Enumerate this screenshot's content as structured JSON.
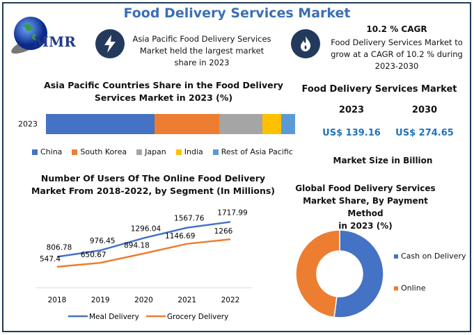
{
  "header": {
    "title": "Food Delivery Services Market",
    "logo_text": "MMR"
  },
  "info1": {
    "icon": "lightning-icon",
    "text_lines": [
      "Asia Pacific Food Delivery Services",
      "Market held the largest market",
      "share in 2023"
    ]
  },
  "info2": {
    "icon": "flame-icon",
    "heading": "10.2 % CAGR",
    "text_lines": [
      "Food Delivery Services Market to",
      "grow at a CAGR of 10.2 % during",
      "2023-2030"
    ]
  },
  "market_size": {
    "title": "Food Delivery Services Market",
    "years": [
      "2023",
      "2030"
    ],
    "values": [
      "US$ 139.16",
      "US$ 274.65"
    ],
    "unit_label": "Market Size in Billion"
  },
  "colors": {
    "blue": "#4472c4",
    "orange": "#ed7d31",
    "gray": "#a5a5a5",
    "yellow": "#ffc000",
    "lightblue": "#5b9bd5",
    "navy": "#233a5c"
  },
  "chart_data": [
    {
      "type": "bar",
      "orientation": "horizontal-stacked",
      "title_lines": [
        "Asia Pacific Countries Share in the Food Delivery",
        "Services  Market in 2023 (%)"
      ],
      "categories": [
        "2023"
      ],
      "series": [
        {
          "name": "China",
          "values": [
            43.6
          ]
        },
        {
          "name": "South Korea",
          "values": [
            26
          ]
        },
        {
          "name": "Japan",
          "values": [
            17.3
          ]
        },
        {
          "name": "India",
          "values": [
            7.5
          ]
        },
        {
          "name": "Rest of Asia Pacific",
          "values": [
            5.6
          ]
        }
      ],
      "legend": "bottom"
    },
    {
      "type": "line",
      "title_lines": [
        "Number Of Users Of The Online Food Delivery",
        "Market From 2018-2022, by Segment (In Millions)"
      ],
      "x": [
        "2018",
        "2019",
        "2020",
        "2021",
        "2022"
      ],
      "series": [
        {
          "name": "Meal Delivery",
          "values": [
            806.78,
            976.45,
            1296.04,
            1567.76,
            1717.99
          ]
        },
        {
          "name": "Grocery Delivery",
          "values": [
            547.4,
            650.67,
            894.18,
            1146.69,
            1266
          ]
        }
      ],
      "ylim": [
        0,
        2250
      ],
      "legend": "bottom",
      "grid": false
    },
    {
      "type": "pie",
      "donut": true,
      "title_lines": [
        "Global Food Delivery Services",
        "Market Share, By Payment Method",
        "in 2023 (%)"
      ],
      "categories": [
        "Cash on Delivery",
        "Online"
      ],
      "values": [
        52,
        48
      ],
      "legend": "right"
    }
  ]
}
